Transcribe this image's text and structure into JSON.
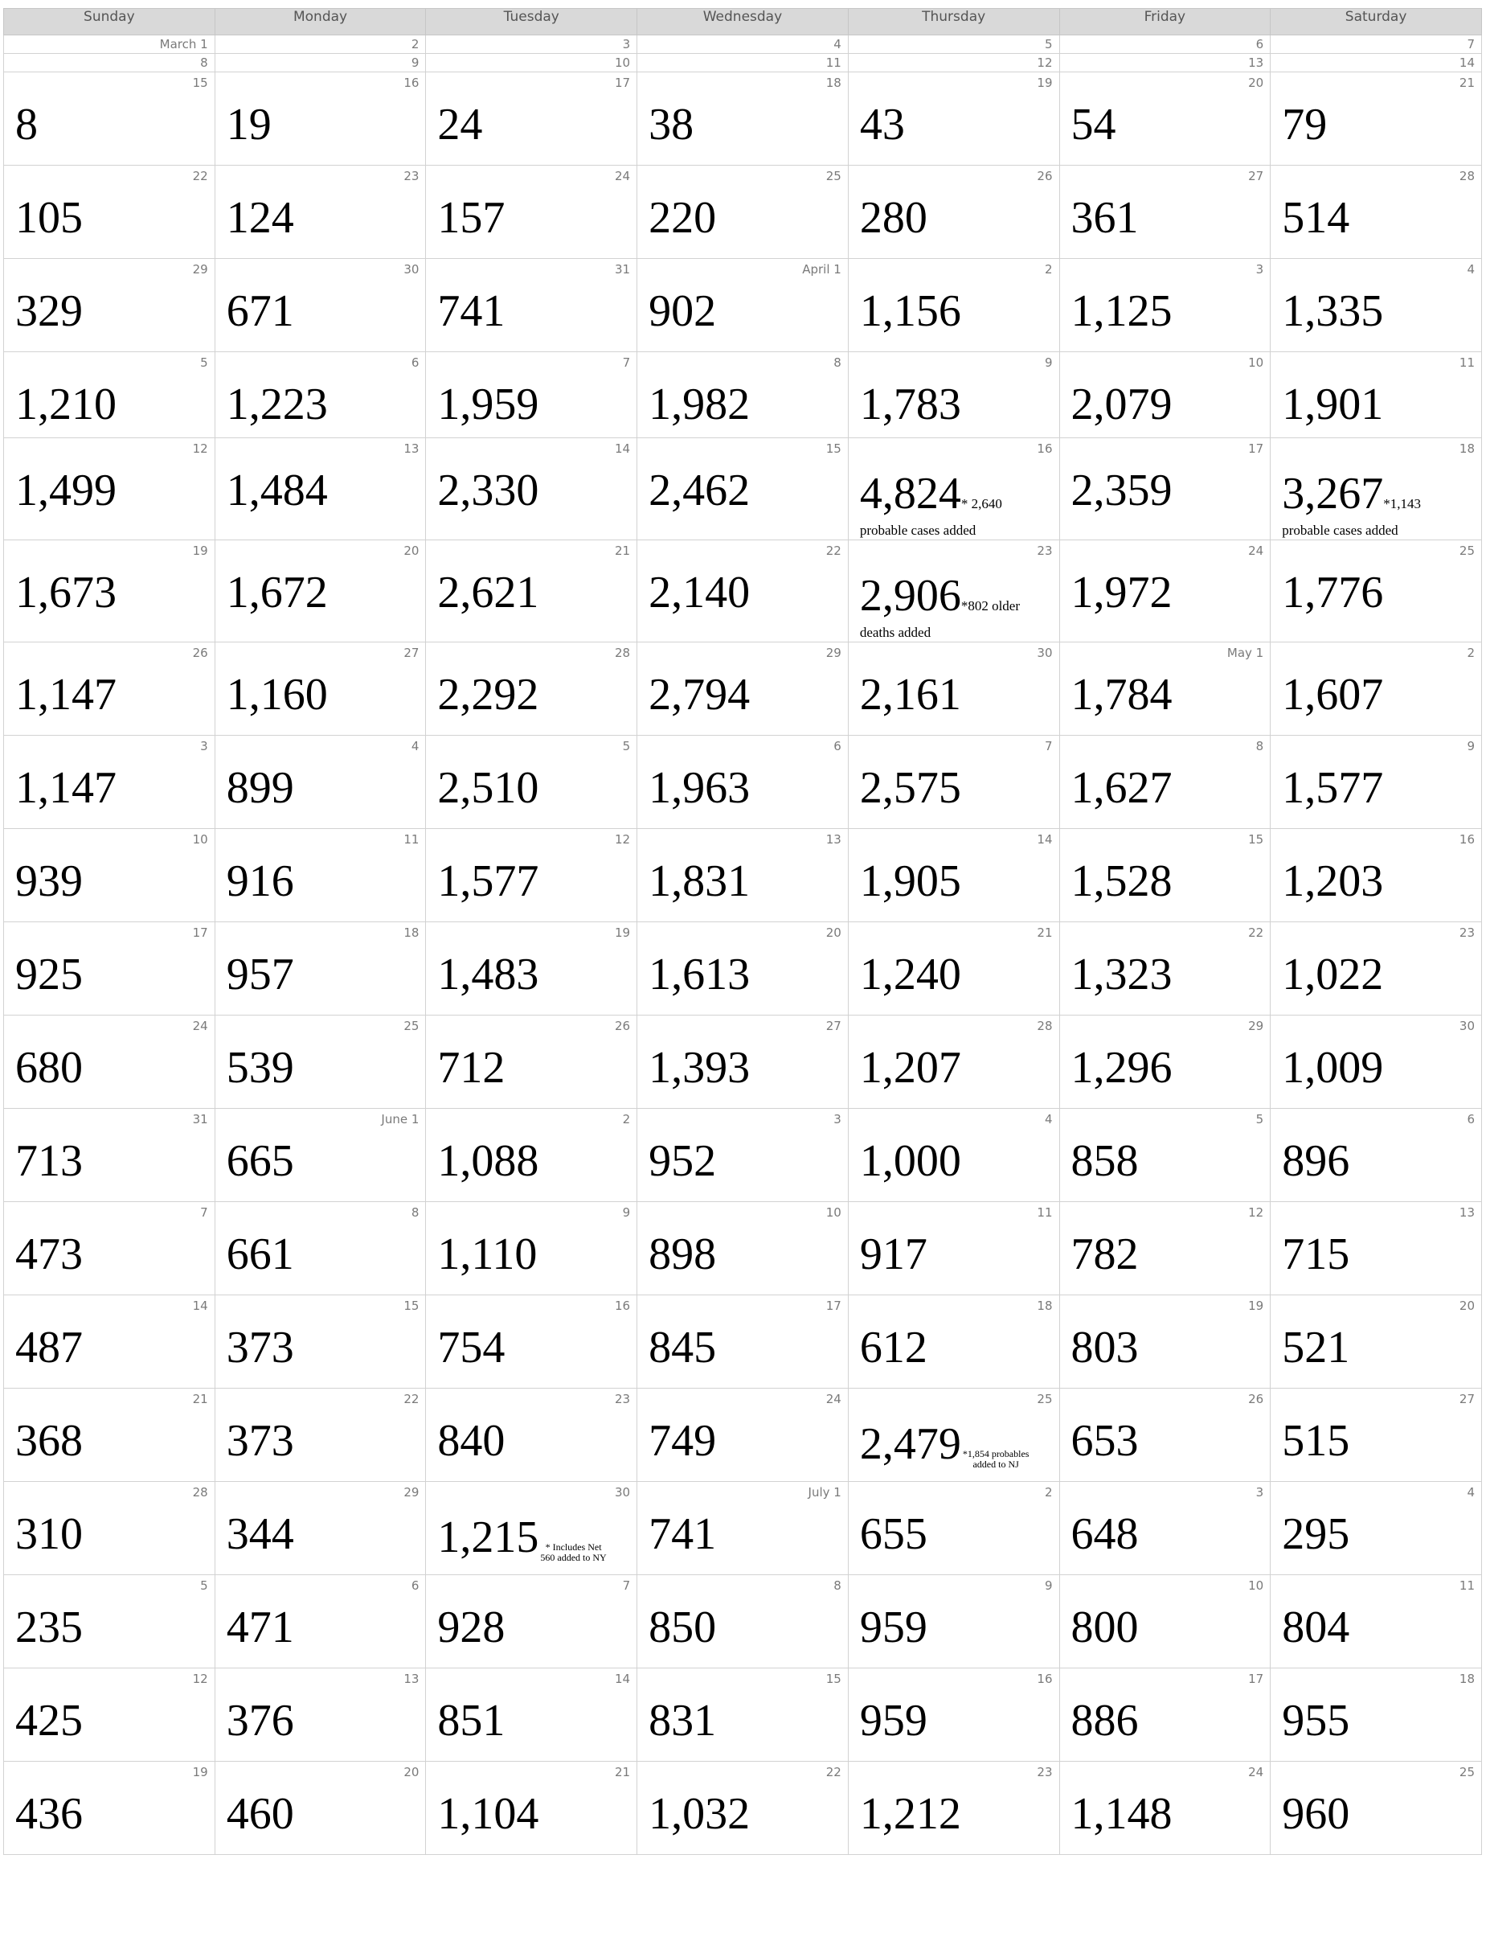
{
  "weekdays": [
    "Sunday",
    "Monday",
    "Tuesday",
    "Wednesday",
    "Thursday",
    "Friday",
    "Saturday"
  ],
  "header_dates": [
    [
      "March 1",
      "2",
      "3",
      "4",
      "5",
      "6",
      "7"
    ],
    [
      "8",
      "9",
      "10",
      "11",
      "12",
      "13",
      "14"
    ]
  ],
  "weeks": [
    {
      "dates": [
        "15",
        "16",
        "17",
        "18",
        "19",
        "20",
        "21"
      ],
      "counts": [
        "8",
        "19",
        "24",
        "38",
        "43",
        "54",
        "79"
      ]
    },
    {
      "dates": [
        "22",
        "23",
        "24",
        "25",
        "26",
        "27",
        "28"
      ],
      "counts": [
        "105",
        "124",
        "157",
        "220",
        "280",
        "361",
        "514"
      ]
    },
    {
      "dates": [
        "29",
        "30",
        "31",
        "April 1",
        "2",
        "3",
        "4"
      ],
      "counts": [
        "329",
        "671",
        "741",
        "902",
        "1,156",
        "1,125",
        "1,335"
      ]
    },
    {
      "dates": [
        "5",
        "6",
        "7",
        "8",
        "9",
        "10",
        "11"
      ],
      "counts": [
        "1,210",
        "1,223",
        "1,959",
        "1,982",
        "1,783",
        "2,079",
        "1,901"
      ]
    },
    {
      "dates": [
        "12",
        "13",
        "14",
        "15",
        "16",
        "17",
        "18"
      ],
      "counts": [
        "1,499",
        "1,484",
        "2,330",
        "2,462",
        "4,824",
        "2,359",
        "3,267"
      ]
    },
    {
      "dates": [
        "19",
        "20",
        "21",
        "22",
        "23",
        "24",
        "25"
      ],
      "counts": [
        "1,673",
        "1,672",
        "2,621",
        "2,140",
        "2,906",
        "1,972",
        "1,776"
      ]
    },
    {
      "dates": [
        "26",
        "27",
        "28",
        "29",
        "30",
        "May 1",
        "2"
      ],
      "counts": [
        "1,147",
        "1,160",
        "2,292",
        "2,794",
        "2,161",
        "1,784",
        "1,607"
      ]
    },
    {
      "dates": [
        "3",
        "4",
        "5",
        "6",
        "7",
        "8",
        "9"
      ],
      "counts": [
        "1,147",
        "899",
        "2,510",
        "1,963",
        "2,575",
        "1,627",
        "1,577"
      ]
    },
    {
      "dates": [
        "10",
        "11",
        "12",
        "13",
        "14",
        "15",
        "16"
      ],
      "counts": [
        "939",
        "916",
        "1,577",
        "1,831",
        "1,905",
        "1,528",
        "1,203"
      ]
    },
    {
      "dates": [
        "17",
        "18",
        "19",
        "20",
        "21",
        "22",
        "23"
      ],
      "counts": [
        "925",
        "957",
        "1,483",
        "1,613",
        "1,240",
        "1,323",
        "1,022"
      ]
    },
    {
      "dates": [
        "24",
        "25",
        "26",
        "27",
        "28",
        "29",
        "30"
      ],
      "counts": [
        "680",
        "539",
        "712",
        "1,393",
        "1,207",
        "1,296",
        "1,009"
      ]
    },
    {
      "dates": [
        "31",
        "June 1",
        "2",
        "3",
        "4",
        "5",
        "6"
      ],
      "counts": [
        "713",
        "665",
        "1,088",
        "952",
        "1,000",
        "858",
        "896"
      ]
    },
    {
      "dates": [
        "7",
        "8",
        "9",
        "10",
        "11",
        "12",
        "13"
      ],
      "counts": [
        "473",
        "661",
        "1,110",
        "898",
        "917",
        "782",
        "715"
      ]
    },
    {
      "dates": [
        "14",
        "15",
        "16",
        "17",
        "18",
        "19",
        "20"
      ],
      "counts": [
        "487",
        "373",
        "754",
        "845",
        "612",
        "803",
        "521"
      ]
    },
    {
      "dates": [
        "21",
        "22",
        "23",
        "24",
        "25",
        "26",
        "27"
      ],
      "counts": [
        "368",
        "373",
        "840",
        "749",
        "2,479",
        "653",
        "515"
      ]
    },
    {
      "dates": [
        "28",
        "29",
        "30",
        "July 1",
        "2",
        "3",
        "4"
      ],
      "counts": [
        "310",
        "344",
        "1,215",
        "741",
        "655",
        "648",
        "295"
      ]
    },
    {
      "dates": [
        "5",
        "6",
        "7",
        "8",
        "9",
        "10",
        "11"
      ],
      "counts": [
        "235",
        "471",
        "928",
        "850",
        "959",
        "800",
        "804"
      ]
    },
    {
      "dates": [
        "12",
        "13",
        "14",
        "15",
        "16",
        "17",
        "18"
      ],
      "counts": [
        "425",
        "376",
        "851",
        "831",
        "959",
        "886",
        "955"
      ]
    },
    {
      "dates": [
        "19",
        "20",
        "21",
        "22",
        "23",
        "24",
        "25"
      ],
      "counts": [
        "436",
        "460",
        "1,104",
        "1,032",
        "1,212",
        "1,148",
        "960"
      ]
    }
  ],
  "notes": {
    "apr16_a": "* 2,640",
    "apr16_b": "probable cases added",
    "apr18_a": "*1,143",
    "apr18_b": "probable cases added",
    "apr23_a": "*802 older",
    "apr23_b": "deaths added",
    "jun25_a": "*1,854 probables",
    "jun25_b": "added to NJ",
    "jun30_a": "* Includes Net",
    "jun30_b": "560 added to NY"
  }
}
